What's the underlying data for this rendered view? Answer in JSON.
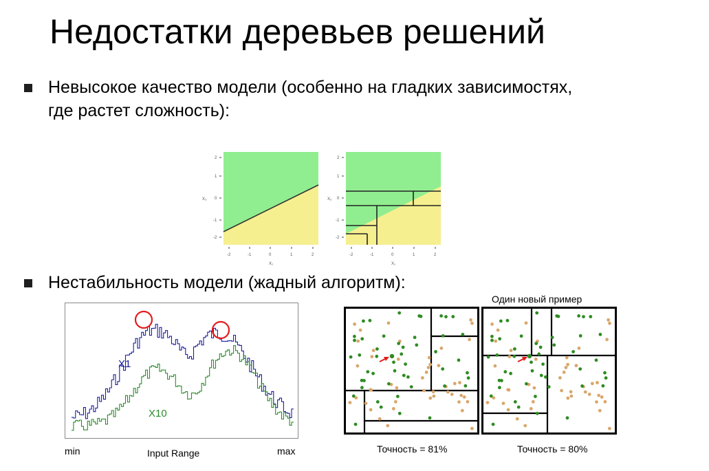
{
  "slide": {
    "title": "Недостатки деревьев решений",
    "bullets": [
      {
        "line1": "Невысокое качество модели (особенно на гладких зависимостях,",
        "line2": "где растет сложность):"
      },
      {
        "line1": "Нестабильность модели (жадный алгоритм):",
        "line2": ""
      }
    ]
  },
  "figure_top": {
    "x_ticks": [
      "-2",
      "-1",
      "0",
      "1",
      "2"
    ],
    "y_ticks": [
      "2",
      "1",
      "0",
      "-1",
      "-2"
    ],
    "xlabel": "X₁",
    "ylabel": "X₂",
    "colors": {
      "green": "#90ee90",
      "yellow": "#f5ef8f"
    }
  },
  "figure_bottom_left": {
    "series": [
      {
        "name": "X1",
        "color": "#1c1c9e"
      },
      {
        "name": "X10",
        "color": "#2a8a2a"
      }
    ],
    "x_min_label": "min",
    "x_max_label": "max",
    "xlabel": "Input Range",
    "highlight_color": "#e41a1c"
  },
  "figure_bottom_right": {
    "header": "Один новый пример",
    "accuracy_left": "Точность = 81%",
    "accuracy_right": "Точность = 80%",
    "colors": {
      "green": "#2e8b22",
      "tan": "#d9a66b",
      "arrow": "#e41a1c"
    }
  }
}
